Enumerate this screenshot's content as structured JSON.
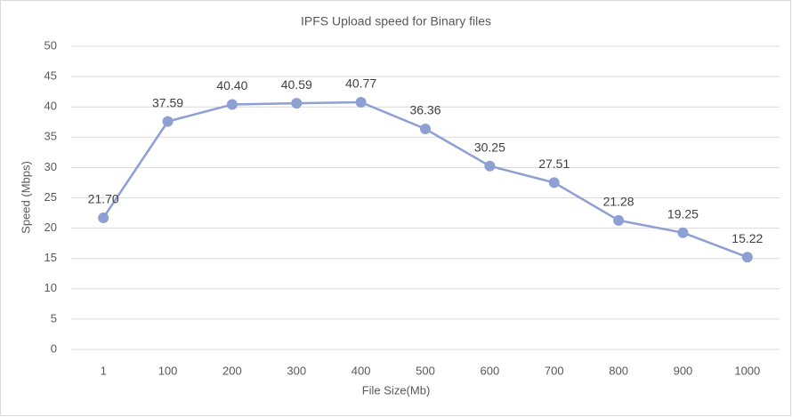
{
  "chart_data": {
    "type": "line",
    "title": "IPFS Upload speed for Binary files",
    "xlabel": "File Size(Mb)",
    "ylabel": "Speed (Mbps)",
    "categories": [
      "1",
      "100",
      "200",
      "300",
      "400",
      "500",
      "600",
      "700",
      "800",
      "900",
      "1000"
    ],
    "values": [
      21.7,
      37.59,
      40.4,
      40.59,
      40.77,
      36.36,
      30.25,
      27.51,
      21.28,
      19.25,
      15.22
    ],
    "value_labels": [
      "21.70",
      "37.59",
      "40.40",
      "40.59",
      "40.77",
      "36.36",
      "30.25",
      "27.51",
      "21.28",
      "19.25",
      "15.22"
    ],
    "color": "#8e9fd3",
    "ylim": [
      0,
      50
    ],
    "yticks": [
      0,
      5,
      10,
      15,
      20,
      25,
      30,
      35,
      40,
      45,
      50
    ],
    "grid": true
  }
}
